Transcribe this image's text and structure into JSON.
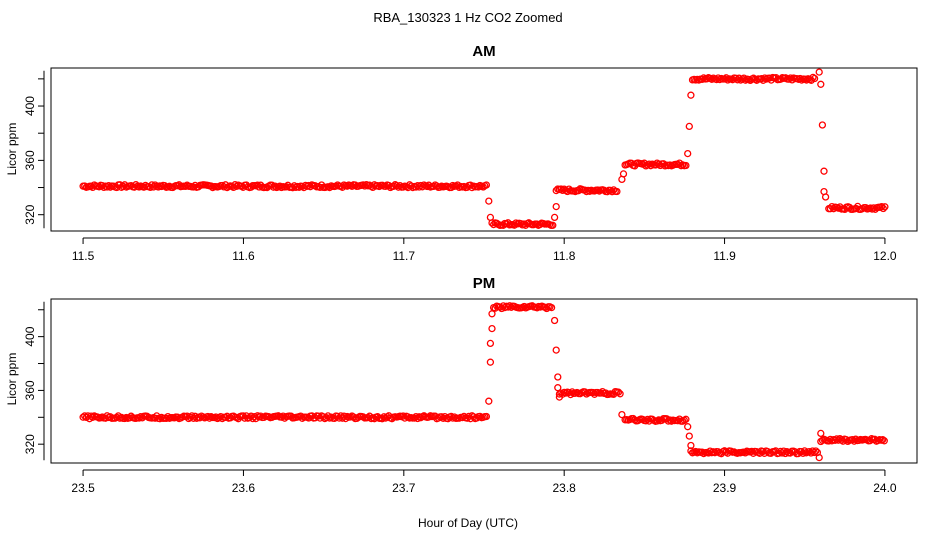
{
  "figure": {
    "title": "RBA_130323  1 Hz CO2 Zoomed",
    "xlabel": "Hour of Day (UTC)"
  },
  "colors": {
    "points": "#ff0000",
    "axes": "#000000",
    "background": "#ffffff"
  },
  "chart_data": [
    {
      "type": "scatter",
      "title": "AM",
      "ylabel": "Licor ppm",
      "xlim": [
        11.48,
        12.02
      ],
      "ylim": [
        308,
        428
      ],
      "xticks": [
        11.5,
        11.6,
        11.7,
        11.8,
        11.9,
        12.0
      ],
      "xtick_labels": [
        "11.5",
        "11.6",
        "11.7",
        "11.8",
        "11.9",
        "12.0"
      ],
      "yticks": [
        320,
        360,
        400
      ],
      "ytick_labels": [
        "320",
        "360",
        "400"
      ],
      "grid": false,
      "series": [
        {
          "marker": "open-circle",
          "segments": [
            {
              "x_start": 11.5,
              "x_end": 11.752,
              "y": 341
            },
            {
              "x_start": 11.755,
              "x_end": 11.793,
              "y": 313
            },
            {
              "x_start": 11.795,
              "x_end": 11.833,
              "y": 338
            },
            {
              "x_start": 11.838,
              "x_end": 11.876,
              "y": 357
            },
            {
              "x_start": 11.88,
              "x_end": 11.957,
              "y": 420
            },
            {
              "x_start": 11.965,
              "x_end": 12.0,
              "y": 325
            }
          ],
          "transition_points": [
            {
              "x": 11.753,
              "y": 330
            },
            {
              "x": 11.754,
              "y": 318
            },
            {
              "x": 11.794,
              "y": 318
            },
            {
              "x": 11.795,
              "y": 326
            },
            {
              "x": 11.836,
              "y": 346
            },
            {
              "x": 11.837,
              "y": 350
            },
            {
              "x": 11.877,
              "y": 365
            },
            {
              "x": 11.878,
              "y": 385
            },
            {
              "x": 11.879,
              "y": 408
            },
            {
              "x": 11.959,
              "y": 425
            },
            {
              "x": 11.96,
              "y": 416
            },
            {
              "x": 11.961,
              "y": 386
            },
            {
              "x": 11.962,
              "y": 352
            },
            {
              "x": 11.962,
              "y": 337
            },
            {
              "x": 11.963,
              "y": 333
            }
          ]
        }
      ]
    },
    {
      "type": "scatter",
      "title": "PM",
      "ylabel": "Licor ppm",
      "xlim": [
        23.48,
        24.02
      ],
      "ylim": [
        306,
        428
      ],
      "xticks": [
        23.5,
        23.6,
        23.7,
        23.8,
        23.9,
        24.0
      ],
      "xtick_labels": [
        "23.5",
        "23.6",
        "23.7",
        "23.8",
        "23.9",
        "24.0"
      ],
      "yticks": [
        320,
        360,
        400
      ],
      "ytick_labels": [
        "320",
        "360",
        "400"
      ],
      "grid": false,
      "series": [
        {
          "marker": "open-circle",
          "segments": [
            {
              "x_start": 23.5,
              "x_end": 23.752,
              "y": 340
            },
            {
              "x_start": 23.756,
              "x_end": 23.793,
              "y": 422
            },
            {
              "x_start": 23.797,
              "x_end": 23.835,
              "y": 358
            },
            {
              "x_start": 23.838,
              "x_end": 23.876,
              "y": 338
            },
            {
              "x_start": 23.88,
              "x_end": 23.958,
              "y": 314
            },
            {
              "x_start": 23.961,
              "x_end": 24.0,
              "y": 323
            }
          ],
          "transition_points": [
            {
              "x": 23.753,
              "y": 352
            },
            {
              "x": 23.754,
              "y": 381
            },
            {
              "x": 23.754,
              "y": 395
            },
            {
              "x": 23.755,
              "y": 406
            },
            {
              "x": 23.755,
              "y": 417
            },
            {
              "x": 23.794,
              "y": 412
            },
            {
              "x": 23.795,
              "y": 390
            },
            {
              "x": 23.796,
              "y": 370
            },
            {
              "x": 23.796,
              "y": 362
            },
            {
              "x": 23.797,
              "y": 355
            },
            {
              "x": 23.836,
              "y": 342
            },
            {
              "x": 23.877,
              "y": 333
            },
            {
              "x": 23.878,
              "y": 326
            },
            {
              "x": 23.879,
              "y": 319
            },
            {
              "x": 23.879,
              "y": 315
            },
            {
              "x": 23.959,
              "y": 310
            },
            {
              "x": 23.96,
              "y": 322
            },
            {
              "x": 23.96,
              "y": 328
            }
          ]
        }
      ]
    }
  ]
}
